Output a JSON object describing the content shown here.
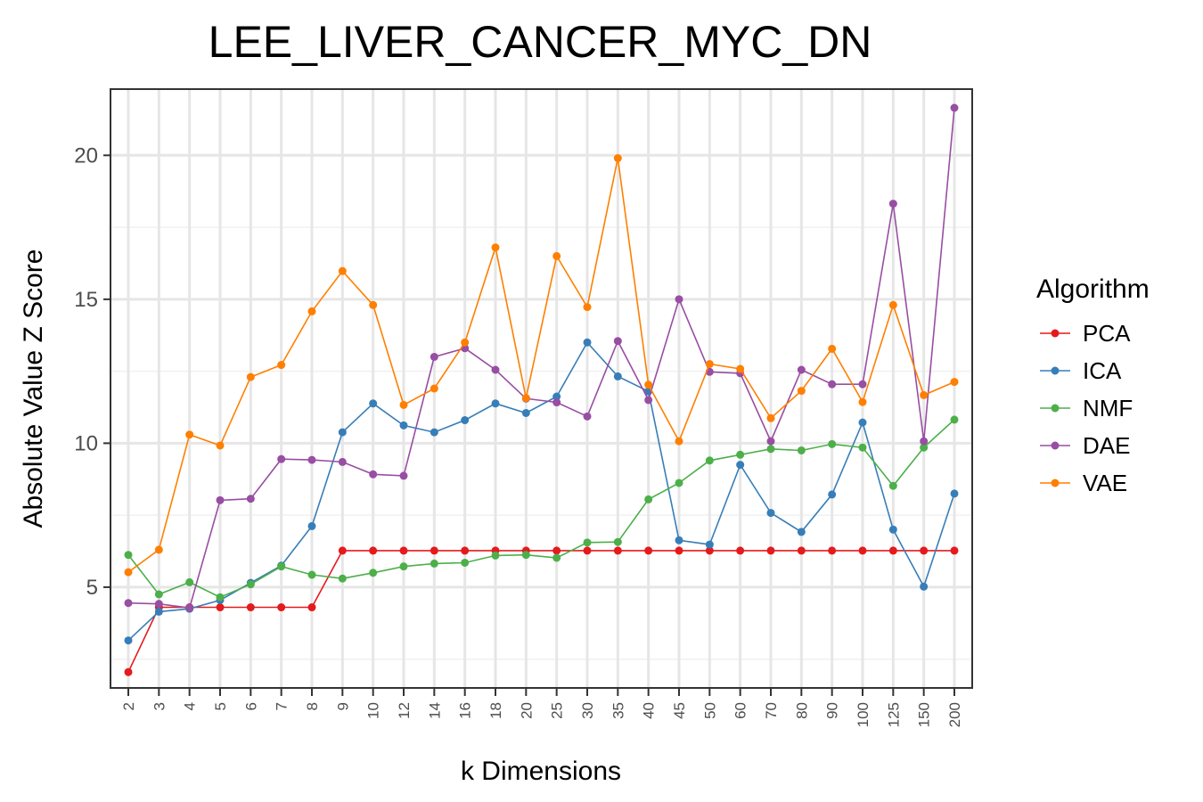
{
  "chart_data": {
    "type": "line",
    "title": "LEE_LIVER_CANCER_MYC_DN",
    "xlabel": "k Dimensions",
    "ylabel": "Absolute Value Z Score",
    "categories": [
      "2",
      "3",
      "4",
      "5",
      "6",
      "7",
      "8",
      "9",
      "10",
      "12",
      "14",
      "16",
      "18",
      "20",
      "25",
      "30",
      "35",
      "40",
      "45",
      "50",
      "60",
      "70",
      "80",
      "90",
      "100",
      "125",
      "150",
      "200"
    ],
    "ylim": [
      1.5,
      22.3
    ],
    "yticks": [
      5,
      10,
      15,
      20
    ],
    "grid": true,
    "legend": {
      "title": "Algorithm",
      "placement": "right"
    },
    "series": [
      {
        "name": "PCA",
        "color": "#e41a1c",
        "values": [
          2.05,
          4.3,
          4.3,
          4.3,
          4.3,
          4.3,
          4.3,
          6.27,
          6.27,
          6.27,
          6.27,
          6.27,
          6.27,
          6.27,
          6.27,
          6.27,
          6.27,
          6.27,
          6.27,
          6.27,
          6.27,
          6.27,
          6.27,
          6.27,
          6.27,
          6.27,
          6.27,
          6.27
        ]
      },
      {
        "name": "ICA",
        "color": "#377eb8",
        "values": [
          3.15,
          4.15,
          4.25,
          4.55,
          5.15,
          5.75,
          7.12,
          10.38,
          11.38,
          10.62,
          10.38,
          10.8,
          11.38,
          11.05,
          11.62,
          13.5,
          12.32,
          11.8,
          6.63,
          6.48,
          9.25,
          7.58,
          6.92,
          8.22,
          10.72,
          7.0,
          5.02,
          8.25
        ]
      },
      {
        "name": "NMF",
        "color": "#4daf4a",
        "values": [
          6.12,
          4.75,
          5.17,
          4.65,
          5.1,
          5.72,
          5.43,
          5.3,
          5.5,
          5.72,
          5.82,
          5.85,
          6.1,
          6.12,
          6.02,
          6.55,
          6.57,
          8.05,
          8.62,
          9.4,
          9.6,
          9.8,
          9.75,
          9.97,
          9.85,
          8.52,
          9.85,
          10.82
        ]
      },
      {
        "name": "DAE",
        "color": "#984ea3",
        "values": [
          4.45,
          4.42,
          4.28,
          8.02,
          8.07,
          9.45,
          9.42,
          9.35,
          8.92,
          8.87,
          13.0,
          13.3,
          12.55,
          11.55,
          11.42,
          10.93,
          13.55,
          11.5,
          15.0,
          12.48,
          12.43,
          10.07,
          12.55,
          12.05,
          12.05,
          18.32,
          10.07,
          21.65
        ]
      },
      {
        "name": "VAE",
        "color": "#ff7f00",
        "values": [
          5.52,
          6.3,
          10.3,
          9.92,
          12.3,
          12.72,
          14.58,
          15.98,
          14.8,
          11.33,
          11.9,
          13.5,
          16.8,
          11.57,
          16.5,
          14.73,
          19.9,
          12.03,
          10.07,
          12.75,
          12.58,
          10.87,
          11.82,
          13.28,
          11.43,
          14.8,
          11.67,
          12.13
        ]
      }
    ]
  }
}
